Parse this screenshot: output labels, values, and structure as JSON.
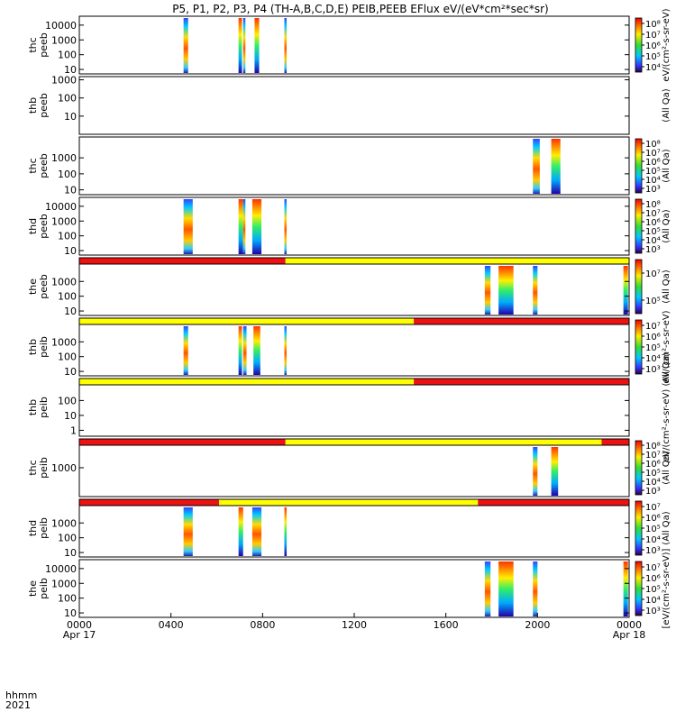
{
  "title": "P5, P1, P2, P3, P4 (TH-A,B,C,D,E) PEIB,PEEB EFlux eV/(eV*cm²*sec*sr)",
  "cbar_title_right": "(All Qa)",
  "bottom_axis": {
    "row_label": "hhmm",
    "year_label": "2021",
    "ticks": [
      {
        "value": 0,
        "label": "0000",
        "sublabel": "Apr 17"
      },
      {
        "value": 4,
        "label": "0400",
        "sublabel": ""
      },
      {
        "value": 8,
        "label": "0800",
        "sublabel": ""
      },
      {
        "value": 12,
        "label": "1200",
        "sublabel": ""
      },
      {
        "value": 16,
        "label": "1600",
        "sublabel": ""
      },
      {
        "value": 20,
        "label": "2000",
        "sublabel": ""
      },
      {
        "value": 24,
        "label": "0000",
        "sublabel": "Apr 18"
      }
    ]
  },
  "bottom_cbar_label": "[eV/(cm²-s-sr-eV)]",
  "colors": {
    "flag_red": "#ee1111",
    "flag_yellow": "#ffff00",
    "flag_black": "#000000"
  },
  "chart_data": {
    "type": "heatmap",
    "x_unit": "hours (UT) from 2021-04-17 00:00",
    "xlim": [
      0,
      24
    ],
    "y_scale": "log",
    "panels": [
      {
        "probe": "thc",
        "product": "peeb",
        "ylim": [
          5,
          40000
        ],
        "yticks": [
          {
            "v": 10,
            "t": "10"
          },
          {
            "v": 100,
            "t": "100"
          },
          {
            "v": 1000,
            "t": "1000"
          },
          {
            "v": 10000,
            "t": "10000"
          }
        ],
        "flags": [],
        "data_intervals": [
          [
            4.55,
            4.75
          ],
          [
            6.95,
            7.1
          ],
          [
            7.15,
            7.25
          ],
          [
            7.65,
            7.85
          ],
          [
            8.95,
            9.05
          ]
        ],
        "cbar_ticks": [
          "10⁴",
          "10⁵",
          "10⁶",
          "10⁷",
          "10⁸"
        ],
        "cbar_label": "eV/(cm²-s-sr-eV)"
      },
      {
        "probe": "thb",
        "product": "peeb",
        "ylim": [
          1,
          1500
        ],
        "yticks": [
          {
            "v": 1,
            "t": "1"
          },
          {
            "v": 10,
            "t": "10"
          },
          {
            "v": 100,
            "t": "100"
          },
          {
            "v": 1000,
            "t": "1000"
          }
        ],
        "flags": [],
        "data_intervals": [],
        "cbar_ticks": [],
        "cbar_label": "(All Qa)"
      },
      {
        "probe": "thc",
        "product": "peeb",
        "ylim": [
          5,
          20000
        ],
        "yticks": [
          {
            "v": 10,
            "t": "10"
          },
          {
            "v": 100,
            "t": "100"
          },
          {
            "v": 1000,
            "t": "1000"
          }
        ],
        "flags": [],
        "data_intervals": [
          [
            19.8,
            20.1
          ],
          [
            20.6,
            21.0
          ]
        ],
        "cbar_ticks": [
          "10³",
          "10⁴",
          "10⁵",
          "10⁶",
          "10⁷",
          "10⁸"
        ],
        "cbar_label": "(All Qa)"
      },
      {
        "probe": "thd",
        "product": "peeb",
        "ylim": [
          5,
          40000
        ],
        "yticks": [
          {
            "v": 10,
            "t": "10"
          },
          {
            "v": 100,
            "t": "100"
          },
          {
            "v": 1000,
            "t": "1000"
          },
          {
            "v": 10000,
            "t": "10000"
          }
        ],
        "flags": [],
        "data_intervals": [
          [
            4.55,
            4.95
          ],
          [
            6.95,
            7.15
          ],
          [
            7.15,
            7.25
          ],
          [
            7.55,
            7.95
          ],
          [
            8.95,
            9.05
          ]
        ],
        "cbar_ticks": [
          "10³",
          "10⁴",
          "10⁵",
          "10⁶",
          "10⁷",
          "10⁸"
        ],
        "cbar_label": "(All Qa)"
      },
      {
        "probe": "the",
        "product": "peeb",
        "ylim": [
          5,
          40000
        ],
        "yticks": [
          {
            "v": 10,
            "t": "10"
          },
          {
            "v": 100,
            "t": "100"
          },
          {
            "v": 1000,
            "t": "1000"
          },
          {
            "v": 10000,
            "t": "10000"
          }
        ],
        "flags": [
          [
            0,
            9,
            "red"
          ],
          [
            9,
            24,
            "yellow"
          ]
        ],
        "data_intervals": [
          [
            17.7,
            17.95
          ],
          [
            18.3,
            18.95
          ],
          [
            19.8,
            20.0
          ],
          [
            23.75,
            23.95
          ]
        ],
        "cbar_ticks": [
          "10⁵",
          "10⁷"
        ],
        "cbar_label": "(All Qa)"
      },
      {
        "probe": "thb",
        "product": "peib",
        "ylim": [
          5,
          40000
        ],
        "yticks": [
          {
            "v": 10,
            "t": "10"
          },
          {
            "v": 100,
            "t": "100"
          },
          {
            "v": 1000,
            "t": "1000"
          },
          {
            "v": 10000,
            "t": "10000"
          }
        ],
        "flags": [
          [
            0,
            14.6,
            "yellow"
          ],
          [
            14.6,
            24,
            "red"
          ]
        ],
        "data_intervals": [
          [
            4.55,
            4.75
          ],
          [
            6.95,
            7.1
          ],
          [
            7.15,
            7.3
          ],
          [
            7.6,
            7.9
          ],
          [
            8.95,
            9.05
          ]
        ],
        "cbar_ticks": [
          "10³",
          "10⁴",
          "10⁵",
          "10⁶",
          "10⁷"
        ],
        "cbar_label": "eV/(cm²-s-sr-eV)"
      },
      {
        "probe": "thb",
        "product": "peib",
        "ylim": [
          0.4,
          3000
        ],
        "yticks": [
          {
            "v": 1,
            "t": "1"
          },
          {
            "v": 10,
            "t": "10"
          },
          {
            "v": 100,
            "t": "100"
          },
          {
            "v": 1000,
            "t": "1000"
          }
        ],
        "flags": [
          [
            0,
            14.6,
            "yellow"
          ],
          [
            14.6,
            24,
            "red"
          ]
        ],
        "data_intervals": [],
        "cbar_ticks": [],
        "cbar_label": "eV/(cm²-s-sr-eV) (All Qa)"
      },
      {
        "probe": "thc",
        "product": "peib",
        "ylim": [
          50,
          20000
        ],
        "yticks": [
          {
            "v": 1000,
            "t": "1000"
          }
        ],
        "flags": [
          [
            0,
            9,
            "red"
          ],
          [
            9,
            22.8,
            "yellow"
          ],
          [
            22.8,
            24,
            "red"
          ]
        ],
        "data_intervals": [
          [
            19.8,
            20.0
          ],
          [
            20.6,
            20.9
          ]
        ],
        "cbar_ticks": [
          "10³",
          "10⁴",
          "10⁵",
          "10⁶",
          "10⁷",
          "10⁸"
        ],
        "cbar_label": "(All Qa)"
      },
      {
        "probe": "thd",
        "product": "peib",
        "ylim": [
          5,
          40000
        ],
        "yticks": [
          {
            "v": 10,
            "t": "10"
          },
          {
            "v": 100,
            "t": "100"
          },
          {
            "v": 1000,
            "t": "1000"
          },
          {
            "v": 10000,
            "t": "10000"
          }
        ],
        "flags": [
          [
            0,
            6.1,
            "red"
          ],
          [
            6.1,
            17.4,
            "yellow"
          ],
          [
            17.4,
            24,
            "red"
          ]
        ],
        "data_intervals": [
          [
            4.55,
            4.95
          ],
          [
            6.95,
            7.15
          ],
          [
            7.55,
            7.95
          ],
          [
            8.95,
            9.05
          ]
        ],
        "cbar_ticks": [
          "10³",
          "10⁴",
          "10⁵",
          "10⁶",
          "10⁷"
        ],
        "cbar_label": "(All Qa)"
      },
      {
        "probe": "the",
        "product": "peib",
        "ylim": [
          5,
          40000
        ],
        "yticks": [
          {
            "v": 10,
            "t": "10"
          },
          {
            "v": 100,
            "t": "100"
          },
          {
            "v": 1000,
            "t": "1000"
          },
          {
            "v": 10000,
            "t": "10000"
          }
        ],
        "flags": [],
        "data_intervals": [
          [
            17.7,
            17.95
          ],
          [
            18.3,
            18.95
          ],
          [
            19.8,
            20.0
          ],
          [
            23.75,
            23.95
          ]
        ],
        "cbar_ticks": [
          "10³",
          "10⁴",
          "10⁵",
          "10⁶",
          "10⁷"
        ],
        "cbar_label": "[eV/(cm²-s-sr-eV)]"
      }
    ]
  }
}
